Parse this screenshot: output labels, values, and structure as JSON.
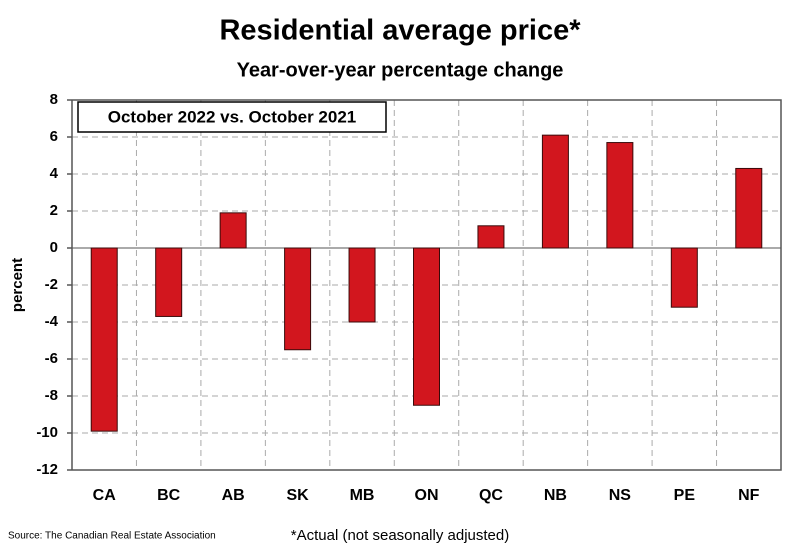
{
  "chart_data": {
    "type": "bar",
    "title": "Residential average price*",
    "subtitle": "Year-over-year percentage change",
    "annotation": "October 2022 vs. October 2021",
    "y_label": "percent",
    "source": "Source: The Canadian Real Estate Association",
    "footnote": "*Actual (not seasonally adjusted)",
    "categories": [
      "CA",
      "BC",
      "AB",
      "SK",
      "MB",
      "ON",
      "QC",
      "NB",
      "NS",
      "PE",
      "NF"
    ],
    "values": [
      -9.9,
      -3.7,
      1.9,
      -5.5,
      -4.0,
      -8.5,
      1.2,
      6.1,
      5.7,
      -3.2,
      4.3
    ],
    "color": "#d2161e",
    "ylim": [
      -12,
      8
    ],
    "yticks": [
      -12,
      -10,
      -8,
      -6,
      -4,
      -2,
      0,
      2,
      4,
      6,
      8
    ],
    "grid": true
  }
}
